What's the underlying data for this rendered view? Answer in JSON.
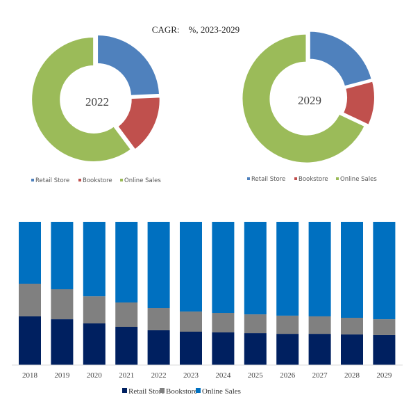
{
  "chart_data": [
    {
      "type": "pie",
      "title": "CAGR:    %, 2023-2029",
      "center_label": "2022",
      "categories": [
        "Retail Store",
        "Bookstore",
        "Online Sales"
      ],
      "values": [
        24.3,
        15.5,
        60.2
      ],
      "colors": [
        "#4f81bd",
        "#c0504d",
        "#9bbb59"
      ],
      "legend": "bottom"
    },
    {
      "type": "pie",
      "center_label": "2029",
      "categories": [
        "Retail Store",
        "Bookstore",
        "Online Sales"
      ],
      "values": [
        20.9,
        11.1,
        68.0
      ],
      "colors": [
        "#4f81bd",
        "#c0504d",
        "#9bbb59"
      ],
      "legend": "bottom"
    },
    {
      "type": "bar",
      "stacked": true,
      "percent": true,
      "categories": [
        "2018",
        "2019",
        "2020",
        "2021",
        "2022",
        "2023",
        "2024",
        "2025",
        "2026",
        "2027",
        "2028",
        "2029"
      ],
      "series": [
        {
          "name": "Retail Store",
          "color": "#002060",
          "values": [
            34.0,
            32.0,
            29.1,
            26.7,
            24.3,
            23.3,
            22.8,
            22.3,
            21.8,
            21.8,
            21.4,
            20.9
          ]
        },
        {
          "name": "Bookstore",
          "color": "#808080",
          "values": [
            22.8,
            20.9,
            18.9,
            17.0,
            15.5,
            14.1,
            13.6,
            13.1,
            12.7,
            12.2,
            11.6,
            11.1
          ]
        },
        {
          "name": "Online Sales",
          "color": "#0070c0",
          "values": [
            43.2,
            47.1,
            52.0,
            56.3,
            60.2,
            62.6,
            63.6,
            64.6,
            65.5,
            66.0,
            67.0,
            68.0
          ]
        }
      ],
      "ylim": [
        0,
        100
      ],
      "grid": false,
      "legend": "bottom"
    }
  ]
}
